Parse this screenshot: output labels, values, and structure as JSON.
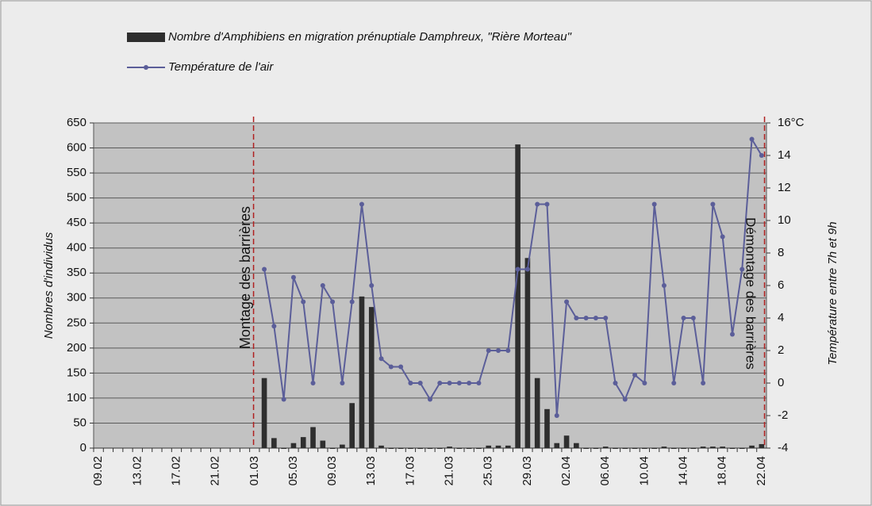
{
  "chart_data": {
    "type": "bar",
    "legend_position": "top",
    "grid": true,
    "y_label": "Nombres d'individus",
    "y2_label": "Température entre 7h et 9h",
    "annotations": [
      "Montage des barrières",
      "Démontage des barrières"
    ],
    "categories": [
      "09.02",
      null,
      null,
      null,
      "13.02",
      null,
      null,
      null,
      "17.02",
      null,
      null,
      null,
      "21.02",
      null,
      null,
      null,
      "01.03",
      null,
      null,
      null,
      "05.03",
      null,
      null,
      null,
      "09.03",
      null,
      null,
      null,
      "13.03",
      null,
      null,
      null,
      "17.03",
      null,
      null,
      null,
      "21.03",
      null,
      null,
      null,
      "25.03",
      null,
      null,
      null,
      "29.03",
      null,
      null,
      null,
      "02.04",
      null,
      null,
      null,
      "06.04",
      null,
      null,
      null,
      "10.04",
      null,
      null,
      null,
      "14.04",
      null,
      null,
      null,
      "18.04",
      null,
      null,
      null,
      "22.04"
    ],
    "ylim": [
      0,
      650
    ],
    "yticks": [
      0,
      50,
      100,
      150,
      200,
      250,
      300,
      350,
      400,
      450,
      500,
      550,
      600,
      650
    ],
    "y2lim": [
      -4,
      16
    ],
    "y2ticks": [
      -4,
      -2,
      0,
      2,
      4,
      6,
      8,
      10,
      12,
      14,
      {
        "value": 16,
        "label": "16°C"
      }
    ],
    "series": [
      {
        "name": "Nombre d'Amphibiens en migration prénuptiale Damphreux, \"Rière Morteau\"",
        "type": "bar",
        "color": "#2e2e2e",
        "values": [
          null,
          null,
          null,
          null,
          null,
          null,
          null,
          null,
          null,
          null,
          null,
          null,
          null,
          null,
          null,
          null,
          null,
          140,
          20,
          0,
          10,
          22,
          42,
          15,
          0,
          7,
          90,
          303,
          282,
          5,
          0,
          0,
          0,
          0,
          0,
          0,
          3,
          0,
          0,
          0,
          5,
          5,
          5,
          607,
          380,
          140,
          78,
          10,
          25,
          10,
          0,
          0,
          3,
          0,
          0,
          0,
          0,
          0,
          3,
          0,
          0,
          0,
          3,
          3,
          3,
          0,
          0,
          5,
          8
        ]
      },
      {
        "name": "Température de l'air",
        "type": "line",
        "axis": "y2",
        "color": "#5b5e99",
        "values": [
          null,
          null,
          null,
          null,
          null,
          null,
          null,
          null,
          null,
          null,
          null,
          null,
          null,
          null,
          null,
          null,
          null,
          7,
          3.5,
          -1,
          6.5,
          5,
          0,
          6,
          5,
          0,
          5,
          11,
          6,
          1.5,
          1,
          1,
          0,
          0,
          -1,
          0,
          0,
          0,
          0,
          0,
          2,
          2,
          2,
          7,
          7,
          11,
          11,
          -2,
          5,
          4,
          4,
          4,
          4,
          0,
          -1,
          0.5,
          0,
          11,
          6,
          0,
          4,
          4,
          0,
          11,
          9,
          3,
          7,
          15,
          14
        ]
      }
    ]
  }
}
